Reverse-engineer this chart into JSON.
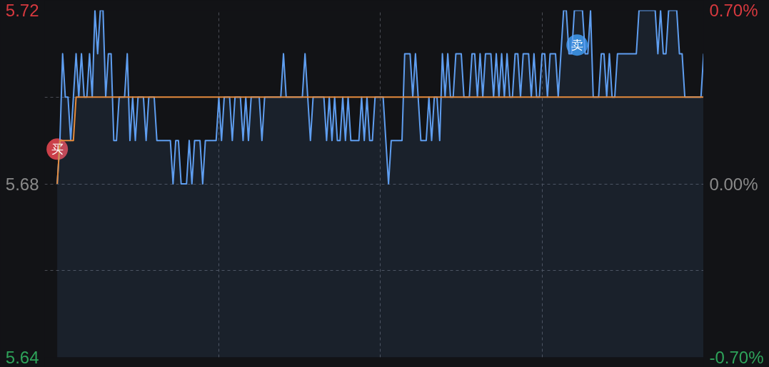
{
  "chart_data": {
    "type": "area",
    "categories": [
      null,
      null,
      null,
      null,
      null,
      null,
      null,
      null,
      null,
      null,
      null,
      null,
      null,
      null,
      null,
      null,
      null,
      null,
      null,
      null,
      null,
      null,
      null,
      null,
      null,
      null,
      null,
      null,
      null,
      null,
      null,
      null,
      null,
      null,
      null,
      null,
      null,
      null,
      null,
      null,
      null,
      null,
      null,
      null,
      null,
      null,
      null,
      null,
      null,
      null,
      null,
      null,
      null,
      null,
      null,
      null,
      null,
      null,
      null,
      null,
      null,
      null,
      null,
      null,
      null,
      null,
      null,
      null,
      null,
      null,
      null,
      null,
      null,
      null,
      null,
      null,
      null,
      null,
      null,
      null,
      null,
      null,
      null,
      null,
      null,
      null,
      null,
      null,
      null,
      null,
      null,
      null,
      null,
      null,
      null,
      null,
      null,
      null,
      null,
      null,
      null,
      null,
      null,
      null,
      null,
      null,
      null,
      null,
      null,
      null,
      null,
      null,
      null,
      null,
      null,
      null,
      null,
      null,
      null,
      null,
      null,
      null,
      null,
      null,
      null,
      null,
      null,
      null,
      null,
      null,
      null,
      null,
      null,
      null,
      null,
      null,
      null,
      null,
      null,
      null,
      null,
      null,
      null,
      null,
      null,
      null,
      null,
      null,
      null,
      null,
      null,
      null,
      null,
      null,
      null,
      null,
      null,
      null,
      null,
      null,
      null,
      null,
      null,
      null,
      null,
      null,
      null,
      null,
      null,
      null,
      null,
      null,
      null,
      null,
      null,
      null,
      null,
      null,
      null,
      null,
      null,
      null,
      null,
      null,
      null,
      null,
      null,
      null,
      null,
      null,
      null,
      null,
      null,
      null,
      null,
      null,
      null,
      null,
      null,
      null,
      null,
      null,
      null,
      null,
      null,
      null,
      null,
      null,
      null,
      null,
      null,
      null,
      null,
      null,
      null,
      null,
      null,
      null,
      null,
      null,
      null,
      null,
      null,
      null,
      null,
      null,
      null,
      null,
      null,
      null,
      null,
      null,
      null,
      null,
      null,
      null,
      null,
      null,
      null,
      null,
      null
    ],
    "series": [
      {
        "color": "#5f9ef0",
        "values": [
          5.68,
          5.69,
          5.71,
          5.7,
          5.7,
          5.69,
          5.7,
          5.71,
          5.7,
          5.71,
          5.7,
          5.7,
          5.71,
          5.7,
          5.72,
          5.71,
          5.72,
          5.72,
          5.7,
          5.71,
          5.71,
          5.69,
          5.69,
          5.7,
          5.7,
          5.7,
          5.71,
          5.69,
          5.7,
          5.69,
          5.7,
          5.7,
          5.7,
          5.69,
          5.7,
          5.7,
          5.7,
          5.69,
          5.69,
          5.69,
          5.69,
          5.69,
          5.69,
          5.68,
          5.69,
          5.69,
          5.68,
          5.68,
          5.68,
          5.69,
          5.68,
          5.69,
          5.69,
          5.69,
          5.68,
          5.69,
          5.69,
          5.69,
          5.69,
          5.69,
          5.7,
          5.69,
          5.7,
          5.7,
          5.7,
          5.69,
          5.7,
          5.7,
          5.7,
          5.69,
          5.7,
          5.69,
          5.7,
          5.7,
          5.7,
          5.7,
          5.69,
          5.7,
          5.7,
          5.7,
          5.7,
          5.7,
          5.7,
          5.7,
          5.71,
          5.7,
          5.7,
          5.7,
          5.7,
          5.7,
          5.7,
          5.7,
          5.71,
          5.7,
          5.69,
          5.7,
          5.7,
          5.7,
          5.7,
          5.7,
          5.69,
          5.7,
          5.69,
          5.7,
          5.69,
          5.69,
          5.7,
          5.69,
          5.7,
          5.69,
          5.69,
          5.69,
          5.69,
          5.7,
          5.69,
          5.7,
          5.69,
          5.69,
          5.7,
          5.7,
          5.7,
          5.7,
          5.69,
          5.68,
          5.69,
          5.69,
          5.69,
          5.69,
          5.69,
          5.71,
          5.71,
          5.71,
          5.7,
          5.71,
          5.7,
          5.69,
          5.69,
          5.69,
          5.7,
          5.69,
          5.7,
          5.7,
          5.69,
          5.71,
          5.7,
          5.71,
          5.7,
          5.7,
          5.71,
          5.71,
          5.71,
          5.7,
          5.7,
          5.7,
          5.71,
          5.71,
          5.7,
          5.71,
          5.7,
          5.71,
          5.71,
          5.71,
          5.7,
          5.71,
          5.7,
          5.71,
          5.7,
          5.71,
          5.7,
          5.7,
          5.71,
          5.71,
          5.7,
          5.71,
          5.71,
          5.71,
          5.7,
          5.71,
          5.7,
          5.7,
          5.71,
          5.71,
          5.7,
          5.71,
          5.71,
          5.71,
          5.7,
          5.71,
          5.72,
          5.72,
          5.71,
          5.71,
          5.72,
          5.72,
          5.72,
          5.72,
          5.71,
          5.71,
          5.72,
          5.7,
          5.7,
          5.7,
          5.71,
          5.71,
          5.7,
          5.71,
          5.7,
          5.7,
          5.71,
          5.71,
          5.71,
          5.71,
          5.71,
          5.71,
          5.71,
          5.71,
          5.72,
          5.72,
          5.72,
          5.72,
          5.72,
          5.72,
          5.72,
          5.71,
          5.72,
          5.71,
          5.71,
          5.72,
          5.72,
          5.72,
          5.72,
          5.71,
          5.71,
          5.7,
          5.7,
          5.7,
          5.7,
          5.7,
          5.7,
          5.7,
          5.71
        ]
      },
      {
        "type": "line",
        "color": "#e58b3c",
        "values": [
          5.68,
          5.69,
          5.69,
          5.69,
          5.69,
          5.69,
          5.69,
          5.7,
          5.7,
          5.7,
          5.7,
          5.7,
          5.7,
          5.7,
          5.7,
          5.7,
          5.7,
          5.7,
          5.7,
          5.7,
          5.7,
          5.7,
          5.7,
          5.7,
          5.7,
          5.7,
          5.7,
          5.7,
          5.7,
          5.7,
          5.7,
          5.7,
          5.7,
          5.7,
          5.7,
          5.7,
          5.7,
          5.7,
          5.7,
          5.7,
          5.7,
          5.7,
          5.7,
          5.7,
          5.7,
          5.7,
          5.7,
          5.7,
          5.7,
          5.7,
          5.7,
          5.7,
          5.7,
          5.7,
          5.7,
          5.7,
          5.7,
          5.7,
          5.7,
          5.7,
          5.7,
          5.7,
          5.7,
          5.7,
          5.7,
          5.7,
          5.7,
          5.7,
          5.7,
          5.7,
          5.7,
          5.7,
          5.7,
          5.7,
          5.7,
          5.7,
          5.7,
          5.7,
          5.7,
          5.7,
          5.7,
          5.7,
          5.7,
          5.7,
          5.7,
          5.7,
          5.7,
          5.7,
          5.7,
          5.7,
          5.7,
          5.7,
          5.7,
          5.7,
          5.7,
          5.7,
          5.7,
          5.7,
          5.7,
          5.7,
          5.7,
          5.7,
          5.7,
          5.7,
          5.7,
          5.7,
          5.7,
          5.7,
          5.7,
          5.7,
          5.7,
          5.7,
          5.7,
          5.7,
          5.7,
          5.7,
          5.7,
          5.7,
          5.7,
          5.7,
          5.7,
          5.7,
          5.7,
          5.7,
          5.7,
          5.7,
          5.7,
          5.7,
          5.7,
          5.7,
          5.7,
          5.7,
          5.7,
          5.7,
          5.7,
          5.7,
          5.7,
          5.7,
          5.7,
          5.7,
          5.7,
          5.7,
          5.7,
          5.7,
          5.7,
          5.7,
          5.7,
          5.7,
          5.7,
          5.7,
          5.7,
          5.7,
          5.7,
          5.7,
          5.7,
          5.7,
          5.7,
          5.7,
          5.7,
          5.7,
          5.7,
          5.7,
          5.7,
          5.7,
          5.7,
          5.7,
          5.7,
          5.7,
          5.7,
          5.7,
          5.7,
          5.7,
          5.7,
          5.7,
          5.7,
          5.7,
          5.7,
          5.7,
          5.7,
          5.7,
          5.7,
          5.7,
          5.7,
          5.7,
          5.7,
          5.7,
          5.7,
          5.7,
          5.7,
          5.7,
          5.7,
          5.7,
          5.7,
          5.7,
          5.7,
          5.7,
          5.7,
          5.7,
          5.7,
          5.7,
          5.7,
          5.7,
          5.7,
          5.7,
          5.7,
          5.7,
          5.7,
          5.7,
          5.7,
          5.7,
          5.7,
          5.7,
          5.7,
          5.7,
          5.7,
          5.7,
          5.7,
          5.7,
          5.7,
          5.7,
          5.7,
          5.7,
          5.7,
          5.7,
          5.7,
          5.7,
          5.7,
          5.7,
          5.7,
          5.7,
          5.7,
          5.7,
          5.7,
          5.7,
          5.7,
          5.7,
          5.7,
          5.7,
          5.7,
          5.7,
          5.7
        ]
      },
      {
        "type": "scatter",
        "marker": "circle",
        "color": "#e0464f",
        "values": [
          5.688,
          null,
          null,
          null,
          null,
          null,
          null,
          null,
          null,
          null,
          null,
          null,
          null,
          null,
          null,
          null,
          null,
          null,
          null,
          null,
          null,
          null,
          null,
          null,
          null,
          null,
          null,
          null,
          null,
          null,
          null,
          null,
          null,
          null,
          null,
          null,
          null,
          null,
          null,
          null,
          null,
          null,
          null,
          null,
          null,
          null,
          null,
          null,
          null,
          null,
          null,
          null,
          null,
          null,
          null,
          null,
          null,
          null,
          null,
          null,
          null,
          null,
          null,
          null,
          null,
          null,
          null,
          null,
          null,
          null,
          null,
          null,
          null,
          null,
          null,
          null,
          null,
          null,
          null,
          null,
          null,
          null,
          null,
          null,
          null,
          null,
          null,
          null,
          null,
          null,
          null,
          null,
          null,
          null,
          null,
          null,
          null,
          null,
          null,
          null,
          null,
          null,
          null,
          null,
          null,
          null,
          null,
          null,
          null,
          null,
          null,
          null,
          null,
          null,
          null,
          null,
          null,
          null,
          null,
          null,
          null,
          null,
          null,
          null,
          null,
          null,
          null,
          null,
          null,
          null,
          null,
          null,
          null,
          null,
          null,
          null,
          null,
          null,
          null,
          null,
          null,
          null,
          null,
          null,
          null,
          null,
          null,
          null,
          null,
          null,
          null,
          null,
          null,
          null,
          null,
          null,
          null,
          null,
          null,
          null,
          null,
          null,
          null,
          null,
          null,
          null,
          null,
          null,
          null,
          null,
          null,
          null,
          null,
          null,
          null,
          null,
          null,
          null,
          null,
          null,
          null,
          null,
          null,
          null,
          null,
          null,
          null,
          null,
          null,
          null,
          null,
          null,
          null,
          null,
          null,
          null,
          null,
          null,
          null,
          null,
          null,
          null,
          null,
          null,
          null,
          null,
          null,
          null,
          null,
          null,
          null,
          null,
          null,
          null,
          null,
          null,
          null,
          null,
          null,
          null,
          null,
          null,
          null,
          null,
          null,
          null,
          null,
          null,
          null,
          null,
          null,
          null,
          null,
          null,
          null,
          null,
          null,
          null,
          null,
          null,
          null
        ],
        "value_labels": [
          "买",
          null,
          null,
          null,
          null,
          null,
          null,
          null,
          null,
          null,
          null,
          null,
          null,
          null,
          null,
          null,
          null,
          null,
          null,
          null,
          null,
          null,
          null,
          null,
          null,
          null,
          null,
          null,
          null,
          null,
          null,
          null,
          null,
          null,
          null,
          null,
          null,
          null,
          null,
          null,
          null,
          null,
          null,
          null,
          null,
          null,
          null,
          null,
          null,
          null,
          null,
          null,
          null,
          null,
          null,
          null,
          null,
          null,
          null,
          null,
          null,
          null,
          null,
          null,
          null,
          null,
          null,
          null,
          null,
          null,
          null,
          null,
          null,
          null,
          null,
          null,
          null,
          null,
          null,
          null,
          null,
          null,
          null,
          null,
          null,
          null,
          null,
          null,
          null,
          null,
          null,
          null,
          null,
          null,
          null,
          null,
          null,
          null,
          null,
          null,
          null,
          null,
          null,
          null,
          null,
          null,
          null,
          null,
          null,
          null,
          null,
          null,
          null,
          null,
          null,
          null,
          null,
          null,
          null,
          null,
          null,
          null,
          null,
          null,
          null,
          null,
          null,
          null,
          null,
          null,
          null,
          null,
          null,
          null,
          null,
          null,
          null,
          null,
          null,
          null,
          null,
          null,
          null,
          null,
          null,
          null,
          null,
          null,
          null,
          null,
          null,
          null,
          null,
          null,
          null,
          null,
          null,
          null,
          null,
          null,
          null,
          null,
          null,
          null,
          null,
          null,
          null,
          null,
          null,
          null,
          null,
          null,
          null,
          null,
          null,
          null,
          null,
          null,
          null,
          null,
          null,
          null,
          null,
          null,
          null,
          null,
          null,
          null,
          null,
          null,
          null,
          null,
          null,
          null,
          null,
          null,
          null,
          null,
          null,
          null,
          null,
          null,
          null,
          null,
          null,
          null,
          null,
          null,
          null,
          null,
          null,
          null,
          null,
          null,
          null,
          null,
          null,
          null,
          null,
          null,
          null,
          null,
          null,
          null,
          null,
          null,
          null,
          null,
          null,
          null,
          null,
          null,
          null,
          null,
          null,
          null,
          null,
          null,
          null,
          null,
          null
        ]
      },
      {
        "type": "scatter",
        "marker": "circle",
        "color": "#3a95e8",
        "values": [
          null,
          null,
          null,
          null,
          null,
          null,
          null,
          null,
          null,
          null,
          null,
          null,
          null,
          null,
          null,
          null,
          null,
          null,
          null,
          null,
          null,
          null,
          null,
          null,
          null,
          null,
          null,
          null,
          null,
          null,
          null,
          null,
          null,
          null,
          null,
          null,
          null,
          null,
          null,
          null,
          null,
          null,
          null,
          null,
          null,
          null,
          null,
          null,
          null,
          null,
          null,
          null,
          null,
          null,
          null,
          null,
          null,
          null,
          null,
          null,
          null,
          null,
          null,
          null,
          null,
          null,
          null,
          null,
          null,
          null,
          null,
          null,
          null,
          null,
          null,
          null,
          null,
          null,
          null,
          null,
          null,
          null,
          null,
          null,
          null,
          null,
          null,
          null,
          null,
          null,
          null,
          null,
          null,
          null,
          null,
          null,
          null,
          null,
          null,
          null,
          null,
          null,
          null,
          null,
          null,
          null,
          null,
          null,
          null,
          null,
          null,
          null,
          null,
          null,
          null,
          null,
          null,
          null,
          null,
          null,
          null,
          null,
          null,
          null,
          null,
          null,
          null,
          null,
          null,
          null,
          null,
          null,
          null,
          null,
          null,
          null,
          null,
          null,
          null,
          null,
          null,
          null,
          null,
          null,
          null,
          null,
          null,
          null,
          null,
          null,
          null,
          null,
          null,
          null,
          null,
          null,
          null,
          null,
          null,
          null,
          null,
          null,
          null,
          null,
          null,
          null,
          null,
          null,
          null,
          null,
          null,
          null,
          null,
          null,
          null,
          null,
          null,
          null,
          null,
          null,
          null,
          null,
          null,
          null,
          null,
          null,
          null,
          null,
          null,
          null,
          null,
          null,
          null,
          5.712,
          null,
          null,
          null,
          null,
          null,
          null,
          null,
          null,
          null,
          null,
          null,
          null,
          null,
          null,
          null,
          null,
          null,
          null,
          null,
          null,
          null,
          null,
          null,
          null,
          null,
          null,
          null,
          null,
          null,
          null,
          null,
          null,
          null,
          null,
          null,
          null,
          null,
          null,
          null,
          null,
          null,
          null,
          null,
          null,
          null,
          null,
          null
        ],
        "value_labels": [
          null,
          null,
          null,
          null,
          null,
          null,
          null,
          null,
          null,
          null,
          null,
          null,
          null,
          null,
          null,
          null,
          null,
          null,
          null,
          null,
          null,
          null,
          null,
          null,
          null,
          null,
          null,
          null,
          null,
          null,
          null,
          null,
          null,
          null,
          null,
          null,
          null,
          null,
          null,
          null,
          null,
          null,
          null,
          null,
          null,
          null,
          null,
          null,
          null,
          null,
          null,
          null,
          null,
          null,
          null,
          null,
          null,
          null,
          null,
          null,
          null,
          null,
          null,
          null,
          null,
          null,
          null,
          null,
          null,
          null,
          null,
          null,
          null,
          null,
          null,
          null,
          null,
          null,
          null,
          null,
          null,
          null,
          null,
          null,
          null,
          null,
          null,
          null,
          null,
          null,
          null,
          null,
          null,
          null,
          null,
          null,
          null,
          null,
          null,
          null,
          null,
          null,
          null,
          null,
          null,
          null,
          null,
          null,
          null,
          null,
          null,
          null,
          null,
          null,
          null,
          null,
          null,
          null,
          null,
          null,
          null,
          null,
          null,
          null,
          null,
          null,
          null,
          null,
          null,
          null,
          null,
          null,
          null,
          null,
          null,
          null,
          null,
          null,
          null,
          null,
          null,
          null,
          null,
          null,
          null,
          null,
          null,
          null,
          null,
          null,
          null,
          null,
          null,
          null,
          null,
          null,
          null,
          null,
          null,
          null,
          null,
          null,
          null,
          null,
          null,
          null,
          null,
          null,
          null,
          null,
          null,
          null,
          null,
          null,
          null,
          null,
          null,
          null,
          null,
          null,
          null,
          null,
          null,
          null,
          null,
          null,
          null,
          null,
          null,
          null,
          null,
          null,
          null,
          "卖",
          null,
          null,
          null,
          null,
          null,
          null,
          null,
          null,
          null,
          null,
          null,
          null,
          null,
          null,
          null,
          null,
          null,
          null,
          null,
          null,
          null,
          null,
          null,
          null,
          null,
          null,
          null,
          null,
          null,
          null,
          null,
          null,
          null,
          null,
          null,
          null,
          null,
          null,
          null,
          null,
          null,
          null,
          null,
          null,
          null,
          null,
          null
        ]
      }
    ],
    "ylim": [
      5.64,
      5.72
    ],
    "yticks": [
      5.72,
      {
        "value": 5.7,
        "label": null
      },
      5.68,
      {
        "value": 5.66,
        "label": null
      },
      5.64
    ],
    "y2lim": [
      -0.7,
      0.7
    ],
    "y2ticks": [
      {
        "value": 0.7,
        "label": "0.70%"
      },
      {
        "value": 0.0,
        "label": "0.00%"
      },
      {
        "value": -0.7,
        "label": "-0.70%"
      }
    ],
    "grid": true,
    "tick_labels": "y"
  }
}
